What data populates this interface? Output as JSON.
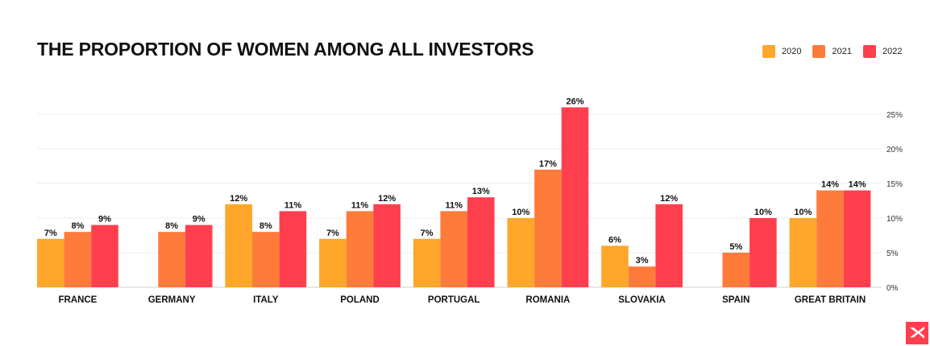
{
  "chart_data": {
    "type": "bar",
    "title": "THE PROPORTION OF WOMEN AMONG ALL INVESTORS",
    "categories": [
      "FRANCE",
      "GERMANY",
      "ITALY",
      "POLAND",
      "PORTUGAL",
      "ROMANIA",
      "SLOVAKIA",
      "SPAIN",
      "GREAT BRITAIN"
    ],
    "series": [
      {
        "name": "2020",
        "color": "#FFA62B",
        "values": [
          7,
          null,
          12,
          7,
          7,
          10,
          6,
          null,
          10
        ]
      },
      {
        "name": "2021",
        "color": "#FF7B3A",
        "values": [
          8,
          8,
          8,
          11,
          11,
          17,
          3,
          5,
          14
        ]
      },
      {
        "name": "2022",
        "color": "#FF3F4E",
        "values": [
          9,
          9,
          11,
          12,
          13,
          26,
          12,
          10,
          14
        ]
      }
    ],
    "ylim": [
      0,
      25
    ],
    "yticks": [
      0,
      5,
      10,
      15,
      20,
      25
    ],
    "ytick_suffix": "%",
    "value_suffix": "%",
    "grid": true,
    "legend_position": "top-right",
    "y_axis_position": "right"
  },
  "brand": {
    "logo_icon": "xtb-x-logo-icon",
    "logo_color": "#FF3F4E"
  }
}
